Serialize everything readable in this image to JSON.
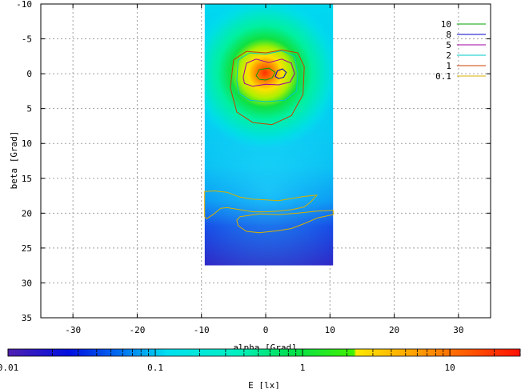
{
  "chart_data": {
    "type": "heatmap",
    "xlabel": "alpha [Grad]",
    "ylabel": "beta [Grad]",
    "xlim": [
      -35,
      35
    ],
    "ylim": [
      -10,
      35
    ],
    "y_inverted": true,
    "x_ticks": [
      -30,
      -20,
      -10,
      0,
      10,
      20,
      30
    ],
    "y_ticks": [
      -10,
      -5,
      0,
      5,
      10,
      15,
      20,
      25,
      30,
      35
    ],
    "grid": true,
    "data_region": {
      "alpha": [
        -9.5,
        10.5
      ],
      "beta": [
        -10,
        27.5
      ]
    },
    "colorbar": {
      "label": "E [lx]",
      "scale": "log",
      "range": [
        0.01,
        30
      ],
      "tick_labels": [
        "0.01",
        "0.1",
        "1",
        "10"
      ],
      "tick_values": [
        0.01,
        0.1,
        1,
        10
      ]
    },
    "legend_position": "top-right",
    "contours": [
      {
        "name": "10",
        "level": 10,
        "color": "#00a000",
        "polygons": [
          [
            [
              -1.5,
              0.3
            ],
            [
              -1,
              -0.6
            ],
            [
              0.5,
              -0.8
            ],
            [
              1.5,
              -0.2
            ],
            [
              1,
              0.6
            ],
            [
              0,
              0.9
            ],
            [
              -1,
              0.8
            ]
          ]
        ]
      },
      {
        "name": "8",
        "level": 8,
        "color": "#0000c8",
        "polygons": [
          [
            [
              1.5,
              0.4
            ],
            [
              1.8,
              -0.4
            ],
            [
              2.6,
              -0.7
            ],
            [
              3.2,
              -0.2
            ],
            [
              2.8,
              0.5
            ],
            [
              2,
              0.7
            ]
          ]
        ]
      },
      {
        "name": "5",
        "level": 5,
        "color": "#a000a0",
        "polygons": [
          [
            [
              -3.5,
              0.5
            ],
            [
              -3,
              -1.5
            ],
            [
              -1.5,
              -2.1
            ],
            [
              0.5,
              -1.6
            ],
            [
              2.5,
              -2.1
            ],
            [
              4,
              -1.5
            ],
            [
              4.5,
              0
            ],
            [
              3.8,
              1.2
            ],
            [
              2,
              1.6
            ],
            [
              0,
              1.5
            ],
            [
              -2,
              1.8
            ],
            [
              -3.3,
              1.4
            ]
          ]
        ]
      },
      {
        "name": "2",
        "level": 2,
        "color": "#00c8c8",
        "polygons": [
          [
            [
              -4.5,
              1
            ],
            [
              -4.3,
              -2
            ],
            [
              -2.5,
              -3
            ],
            [
              0,
              -2.8
            ],
            [
              2.5,
              -3.3
            ],
            [
              4.5,
              -2.5
            ],
            [
              5,
              0
            ],
            [
              4.8,
              2.5
            ],
            [
              3,
              3.8
            ],
            [
              0,
              4
            ],
            [
              -2.5,
              3.8
            ],
            [
              -4.2,
              2.8
            ]
          ]
        ]
      },
      {
        "name": "1",
        "level": 1,
        "color": "#c84000",
        "polygons": [
          [
            [
              -5.5,
              2
            ],
            [
              -5,
              -2
            ],
            [
              -3,
              -3.2
            ],
            [
              0,
              -3
            ],
            [
              2.5,
              -3.4
            ],
            [
              5,
              -3
            ],
            [
              6,
              -1
            ],
            [
              5.8,
              3
            ],
            [
              4,
              6
            ],
            [
              1,
              7.3
            ],
            [
              -2,
              7
            ],
            [
              -4.5,
              5.5
            ]
          ]
        ]
      },
      {
        "name": "0.1",
        "level": 0.1,
        "color": "#d8b000",
        "polygons": [
          [
            [
              -9.5,
              16.9
            ],
            [
              -8,
              16.8
            ],
            [
              -6,
              17
            ],
            [
              -4,
              17.7
            ],
            [
              -2,
              18
            ],
            [
              0,
              18.1
            ],
            [
              2,
              18.2
            ],
            [
              4,
              17.9
            ],
            [
              6,
              17.6
            ],
            [
              8,
              17.4
            ],
            [
              7,
              18.4
            ],
            [
              6,
              19.1
            ],
            [
              4,
              19.5
            ],
            [
              2,
              19.7
            ],
            [
              0,
              19.8
            ],
            [
              -2,
              19.8
            ],
            [
              -4,
              19.5
            ],
            [
              -6,
              19.2
            ],
            [
              -7,
              19.3
            ],
            [
              -8.2,
              20.2
            ],
            [
              -9.2,
              20.8
            ],
            [
              -9.5,
              20.5
            ],
            [
              -9.5,
              18.5
            ]
          ],
          [
            [
              -4,
              20.5
            ],
            [
              -1,
              20.1
            ],
            [
              2,
              20.2
            ],
            [
              5,
              20
            ],
            [
              8,
              19.7
            ],
            [
              10.5,
              19.6
            ],
            [
              10.5,
              20.2
            ],
            [
              8,
              20.7
            ],
            [
              6,
              21.5
            ],
            [
              4,
              22.2
            ],
            [
              2,
              22.5
            ],
            [
              -1,
              22.8
            ],
            [
              -3,
              22.6
            ],
            [
              -4.3,
              21.8
            ],
            [
              -4.5,
              21
            ]
          ]
        ]
      }
    ]
  }
}
